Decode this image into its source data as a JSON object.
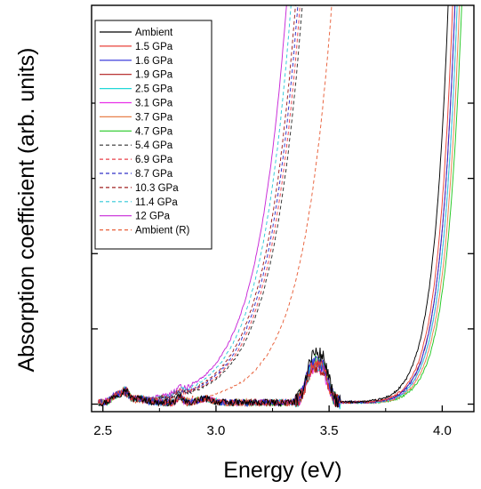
{
  "chart_data": {
    "type": "line",
    "title": "",
    "xlabel": "Energy (eV)",
    "ylabel": "Absorption coefficient (arb. units)",
    "xlim": [
      2.45,
      4.14
    ],
    "ylim": [
      -0.1,
      5.3
    ],
    "x_ticks": [
      2.5,
      3.0,
      3.5,
      4.0
    ],
    "x_tick_labels": [
      "2.5",
      "3.0",
      "3.5",
      "4.0"
    ],
    "y_ticks": [
      0,
      1,
      2,
      3,
      4
    ],
    "y_tick_labels_shown": false,
    "grid": false,
    "legend_position": "top-left",
    "series": [
      {
        "name": "Ambient",
        "color": "#000000",
        "dash": false,
        "edge": 4.02,
        "peak": 1.0
      },
      {
        "name": "1.5 GPa",
        "color": "#e8403a",
        "dash": false,
        "edge": 4.04,
        "peak": 0.78
      },
      {
        "name": "1.6 GPa",
        "color": "#2a2ad8",
        "dash": false,
        "edge": 4.05,
        "peak": 0.8
      },
      {
        "name": "1.9 GPa",
        "color": "#b01a1a",
        "dash": false,
        "edge": 4.05,
        "peak": 0.72
      },
      {
        "name": "2.5 GPa",
        "color": "#22d8d8",
        "dash": false,
        "edge": 4.06,
        "peak": 0.76
      },
      {
        "name": "3.1 GPa",
        "color": "#e830e8",
        "dash": false,
        "edge": 4.06,
        "peak": 0.7
      },
      {
        "name": "3.7 GPa",
        "color": "#e8804a",
        "dash": false,
        "edge": 4.07,
        "peak": 0.74
      },
      {
        "name": "4.7 GPa",
        "color": "#22c822",
        "dash": false,
        "edge": 4.08,
        "peak": 0.82
      },
      {
        "name": "5.4 GPa",
        "color": "#303030",
        "dash": true,
        "edge": 3.37,
        "peak": 0.7
      },
      {
        "name": "6.9 GPa",
        "color": "#e8404a",
        "dash": true,
        "edge": 3.36,
        "peak": 0.7
      },
      {
        "name": "8.7 GPa",
        "color": "#3030c8",
        "dash": true,
        "edge": 3.35,
        "peak": 0.7
      },
      {
        "name": "10.3 GPa",
        "color": "#a02020",
        "dash": true,
        "edge": 3.34,
        "peak": 0.7
      },
      {
        "name": "11.4 GPa",
        "color": "#30c8d8",
        "dash": true,
        "edge": 3.32,
        "peak": 0.7
      },
      {
        "name": "12 GPa",
        "color": "#c828d8",
        "dash": false,
        "edge": 3.3,
        "peak": 0.7
      },
      {
        "name": "Ambient (R)",
        "color": "#e8603a",
        "dash": true,
        "edge": 3.5,
        "peak": 0.7
      }
    ]
  }
}
